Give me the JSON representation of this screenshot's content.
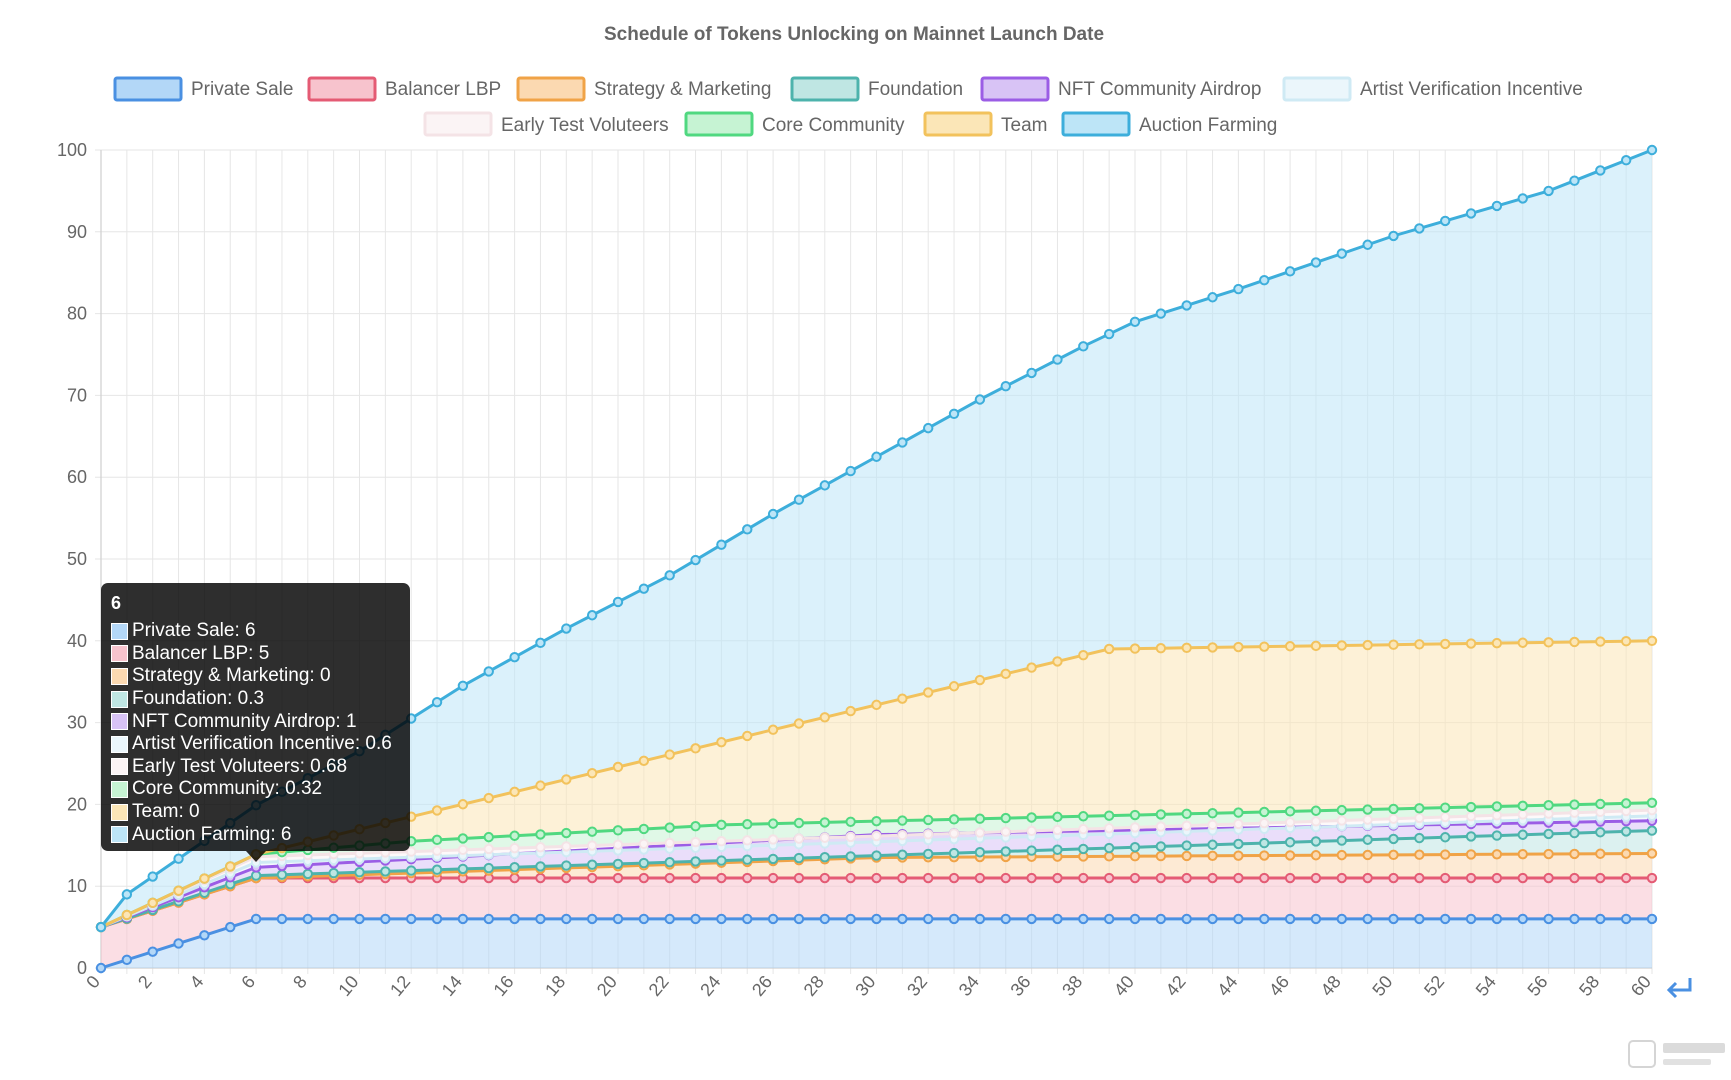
{
  "chart_data": {
    "type": "area",
    "stacked": true,
    "title": "Schedule of Tokens Unlocking on Mainnet Launch Date",
    "xlabel": "",
    "ylabel": "",
    "x": [
      0,
      1,
      2,
      3,
      4,
      5,
      6,
      7,
      8,
      9,
      10,
      11,
      12,
      13,
      14,
      15,
      16,
      17,
      18,
      19,
      20,
      21,
      22,
      23,
      24,
      25,
      26,
      27,
      28,
      29,
      30,
      31,
      32,
      33,
      34,
      35,
      36,
      37,
      38,
      39,
      40,
      41,
      42,
      43,
      44,
      45,
      46,
      47,
      48,
      49,
      50,
      51,
      52,
      53,
      54,
      55,
      56,
      57,
      58,
      59,
      60
    ],
    "xticks": [
      "0",
      "2",
      "4",
      "6",
      "8",
      "10",
      "12",
      "14",
      "16",
      "18",
      "20",
      "22",
      "24",
      "26",
      "28",
      "30",
      "32",
      "34",
      "36",
      "38",
      "40",
      "42",
      "44",
      "46",
      "48",
      "50",
      "52",
      "54",
      "56",
      "58",
      "60"
    ],
    "ylim": [
      0,
      100
    ],
    "yticks": [
      "0",
      "10",
      "20",
      "30",
      "40",
      "50",
      "60",
      "70",
      "80",
      "90",
      "100"
    ],
    "grid": true,
    "legend_position": "top",
    "series": [
      {
        "name": "Private Sale",
        "cumulative_anchors": [
          [
            0,
            0
          ],
          [
            6,
            6
          ],
          [
            60,
            6
          ]
        ]
      },
      {
        "name": "Balancer LBP",
        "cumulative_anchors": [
          [
            0,
            5
          ],
          [
            6,
            11
          ],
          [
            60,
            11
          ]
        ]
      },
      {
        "name": "Strategy & Marketing",
        "cumulative_anchors": [
          [
            0,
            5
          ],
          [
            6,
            11
          ],
          [
            12,
            11.6
          ],
          [
            30,
            13.5
          ],
          [
            60,
            14
          ]
        ]
      },
      {
        "name": "Foundation",
        "cumulative_anchors": [
          [
            0,
            5
          ],
          [
            6,
            11.3
          ],
          [
            60,
            16.8
          ]
        ]
      },
      {
        "name": "NFT Community Airdrop",
        "cumulative_anchors": [
          [
            0,
            5
          ],
          [
            6,
            12.3
          ],
          [
            30,
            16.3
          ],
          [
            60,
            18
          ]
        ]
      },
      {
        "name": "Artist Verification Incentive",
        "cumulative_anchors": [
          [
            0,
            5
          ],
          [
            6,
            12.9
          ],
          [
            60,
            18.6
          ]
        ]
      },
      {
        "name": "Early Test Voluteers",
        "cumulative_anchors": [
          [
            0,
            5
          ],
          [
            6,
            13.6
          ],
          [
            60,
            19.3
          ]
        ]
      },
      {
        "name": "Core Community",
        "cumulative_anchors": [
          [
            0,
            5
          ],
          [
            6,
            13.9
          ],
          [
            12,
            15.5
          ],
          [
            24,
            17.5
          ],
          [
            60,
            20.2
          ]
        ]
      },
      {
        "name": "Team",
        "cumulative_anchors": [
          [
            0,
            5
          ],
          [
            6,
            13.9
          ],
          [
            12,
            18.5
          ],
          [
            39,
            39
          ],
          [
            60,
            40
          ]
        ]
      },
      {
        "name": "Auction Farming",
        "cumulative_anchors": [
          [
            0,
            5
          ],
          [
            1,
            9
          ],
          [
            6,
            19.9
          ],
          [
            10,
            26.5
          ],
          [
            14,
            34.5
          ],
          [
            18,
            41.5
          ],
          [
            22,
            48
          ],
          [
            26,
            55.5
          ],
          [
            30,
            62.5
          ],
          [
            34,
            69.5
          ],
          [
            38,
            76
          ],
          [
            40,
            79
          ],
          [
            44,
            83
          ],
          [
            50,
            89.5
          ],
          [
            56,
            95
          ],
          [
            60,
            100
          ]
        ]
      }
    ],
    "tooltip": {
      "title": "6",
      "items": [
        {
          "label": "Private Sale: 6"
        },
        {
          "label": "Balancer LBP: 5"
        },
        {
          "label": "Strategy & Marketing: 0"
        },
        {
          "label": "Foundation: 0.3"
        },
        {
          "label": "NFT Community Airdrop: 1"
        },
        {
          "label": "Artist Verification Incentive: 0.6"
        },
        {
          "label": "Early Test Voluteers: 0.68"
        },
        {
          "label": "Core Community: 0.32"
        },
        {
          "label": "Team: 0"
        },
        {
          "label": "Auction Farming: 6"
        }
      ]
    }
  },
  "legend": [
    {
      "name": "Private Sale",
      "color": "#4a90e2",
      "fill": "#b3d7f7"
    },
    {
      "name": "Balancer LBP",
      "color": "#e45b74",
      "fill": "#f7c3cd"
    },
    {
      "name": "Strategy & Marketing",
      "color": "#f0a347",
      "fill": "#fbd9b1"
    },
    {
      "name": "Foundation",
      "color": "#4db3ac",
      "fill": "#bfe6e3"
    },
    {
      "name": "NFT Community Airdrop",
      "color": "#9b5de5",
      "fill": "#d8c3f5"
    },
    {
      "name": "Artist Verification Incentive",
      "color": "#cfeaf4",
      "fill": "#ebf6fb"
    },
    {
      "name": "Early Test Voluteers",
      "color": "#f4e3e6",
      "fill": "#fbf4f5"
    },
    {
      "name": "Core Community",
      "color": "#50d880",
      "fill": "#c6f3d3"
    },
    {
      "name": "Team",
      "color": "#f2c25c",
      "fill": "#fbe6b7"
    },
    {
      "name": "Auction Farming",
      "color": "#3daedb",
      "fill": "#bde5f7"
    }
  ]
}
